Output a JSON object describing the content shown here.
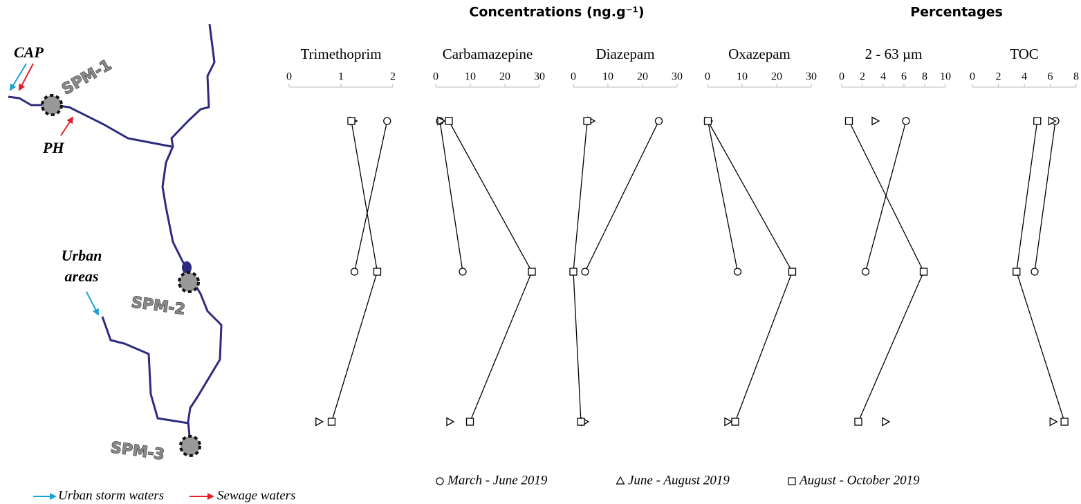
{
  "header": {
    "left": "Concentrations (ng.g⁻¹)",
    "right": "Percentages"
  },
  "map": {
    "cap": "CAP",
    "ph": "PH",
    "urban": [
      "Urban",
      "areas"
    ],
    "sites": [
      "SPM-1",
      "SPM-2",
      "SPM-3"
    ],
    "legend": [
      "Urban storm waters",
      "Sewage waters"
    ]
  },
  "legend": [
    {
      "name": "March - June 2019",
      "marker": "circle",
      "line": true
    },
    {
      "name": "June - August 2019",
      "marker": "triangle",
      "line": false
    },
    {
      "name": "August - October 2019",
      "marker": "square",
      "line": true
    }
  ],
  "chart_data": [
    {
      "type": "line",
      "title": "Trimethoprim",
      "xlim": [
        0,
        2
      ],
      "xticks": [
        0,
        1,
        2
      ],
      "series": [
        {
          "color": "#000000",
          "values": [
            1.89,
            1.26,
            null
          ]
        },
        {
          "color": "#000000",
          "values": [
            1.23,
            null,
            0.57
          ]
        },
        {
          "color": "#000000",
          "values": [
            1.2,
            1.7,
            0.82
          ]
        }
      ]
    },
    {
      "type": "line",
      "title": "Carbamazepine",
      "xlim": [
        0,
        30
      ],
      "xticks": [
        0,
        10,
        20,
        30
      ],
      "series": [
        {
          "color": "#000000",
          "values": [
            1.2,
            7.8,
            null
          ]
        },
        {
          "color": "#000000",
          "values": [
            1.4,
            null,
            4.0
          ]
        },
        {
          "color": "#000000",
          "values": [
            3.8,
            27.8,
            9.9
          ]
        }
      ]
    },
    {
      "type": "line",
      "title": "Diazepam",
      "xlim": [
        0,
        30
      ],
      "xticks": [
        0,
        10,
        20,
        30
      ],
      "series": [
        {
          "color": "#000000",
          "values": [
            24.7,
            3.4,
            null
          ]
        },
        {
          "color": "#000000",
          "values": [
            5.0,
            null,
            3.2
          ]
        },
        {
          "color": "#000000",
          "values": [
            4.0,
            0.0,
            2.2
          ]
        }
      ]
    },
    {
      "type": "line",
      "title": "Oxazepam",
      "xlim": [
        0,
        30
      ],
      "xticks": [
        0,
        10,
        20,
        30
      ],
      "series": [
        {
          "color": "#000000",
          "values": [
            0.1,
            8.7,
            null
          ]
        },
        {
          "color": "#000000",
          "values": [
            0.2,
            null,
            5.8
          ]
        },
        {
          "color": "#000000",
          "values": [
            0.1,
            24.5,
            8.0
          ]
        }
      ]
    },
    {
      "type": "line",
      "title": "2 - 63 µm",
      "xlim": [
        0,
        10
      ],
      "xticks": [
        0,
        2,
        4,
        6,
        8,
        10
      ],
      "series": [
        {
          "color": "#000000",
          "values": [
            6.2,
            2.3,
            null
          ]
        },
        {
          "color": "#000000",
          "values": [
            3.2,
            null,
            4.2
          ]
        },
        {
          "color": "#000000",
          "values": [
            0.7,
            7.9,
            1.6
          ]
        }
      ]
    },
    {
      "type": "line",
      "title": "TOC",
      "xlim": [
        0,
        8
      ],
      "xticks": [
        0,
        2,
        4,
        6,
        8
      ],
      "series": [
        {
          "color": "#000000",
          "values": [
            6.4,
            4.8,
            null
          ]
        },
        {
          "color": "#000000",
          "values": [
            6.1,
            null,
            6.2
          ]
        },
        {
          "color": "#000000",
          "values": [
            5.0,
            3.4,
            7.1
          ]
        }
      ]
    }
  ]
}
